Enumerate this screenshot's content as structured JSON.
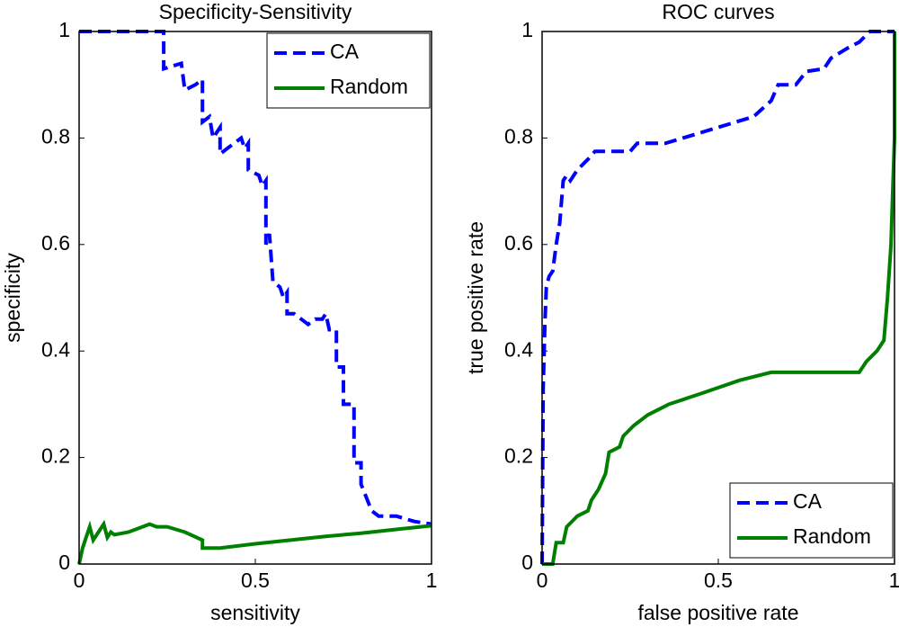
{
  "chart_data": [
    {
      "type": "line",
      "title": "Specificity-Sensitivity",
      "x_label": "sensitivity",
      "y_label": "specificity",
      "xlim": [
        0,
        1
      ],
      "ylim": [
        0,
        1
      ],
      "xticks": [
        0,
        0.5,
        1
      ],
      "yticks": [
        0,
        0.2,
        0.4,
        0.6,
        0.8,
        1
      ],
      "legend": "upper right",
      "series": [
        {
          "name": "CA",
          "color": "#0000ff",
          "dash": "dashed",
          "x": [
            0,
            0.24,
            0.24,
            0.29,
            0.3,
            0.33,
            0.35,
            0.35,
            0.37,
            0.38,
            0.4,
            0.4,
            0.42,
            0.44,
            0.46,
            0.47,
            0.48,
            0.48,
            0.51,
            0.52,
            0.53,
            0.53,
            0.54,
            0.55,
            0.57,
            0.58,
            0.59,
            0.59,
            0.61,
            0.63,
            0.65,
            0.67,
            0.69,
            0.7,
            0.71,
            0.73,
            0.73,
            0.75,
            0.75,
            0.77,
            0.78,
            0.78,
            0.8,
            0.8,
            0.83,
            0.85,
            0.9,
            0.95,
            1
          ],
          "values": [
            1,
            1,
            0.93,
            0.94,
            0.89,
            0.9,
            0.91,
            0.83,
            0.84,
            0.8,
            0.82,
            0.77,
            0.78,
            0.79,
            0.8,
            0.78,
            0.79,
            0.74,
            0.73,
            0.71,
            0.72,
            0.6,
            0.62,
            0.53,
            0.52,
            0.5,
            0.51,
            0.47,
            0.47,
            0.46,
            0.45,
            0.46,
            0.46,
            0.47,
            0.44,
            0.44,
            0.37,
            0.37,
            0.3,
            0.3,
            0.3,
            0.19,
            0.19,
            0.15,
            0.1,
            0.09,
            0.09,
            0.08,
            0.075
          ]
        },
        {
          "name": "Random",
          "color": "#008000",
          "dash": "solid",
          "x": [
            0,
            0.01,
            0.02,
            0.03,
            0.04,
            0.06,
            0.07,
            0.08,
            0.09,
            0.1,
            0.14,
            0.18,
            0.2,
            0.22,
            0.25,
            0.3,
            0.35,
            0.35,
            0.4,
            0.5,
            0.6,
            0.7,
            0.8,
            0.9,
            1
          ],
          "values": [
            0,
            0.03,
            0.05,
            0.07,
            0.045,
            0.065,
            0.075,
            0.05,
            0.06,
            0.055,
            0.06,
            0.07,
            0.075,
            0.07,
            0.07,
            0.06,
            0.045,
            0.03,
            0.03,
            0.038,
            0.045,
            0.052,
            0.058,
            0.065,
            0.072
          ]
        }
      ]
    },
    {
      "type": "line",
      "title": "ROC curves",
      "x_label": "false positive rate",
      "y_label": "true positive rate",
      "xlim": [
        0,
        1
      ],
      "ylim": [
        0,
        1
      ],
      "xticks": [
        0,
        0.5,
        1
      ],
      "yticks": [
        0,
        0.2,
        0.4,
        0.6,
        0.8,
        1
      ],
      "legend": "lower right",
      "series": [
        {
          "name": "CA",
          "color": "#0000ff",
          "dash": "dashed",
          "x": [
            0,
            0.003,
            0.008,
            0.012,
            0.02,
            0.03,
            0.04,
            0.05,
            0.06,
            0.07,
            0.08,
            0.1,
            0.13,
            0.15,
            0.2,
            0.25,
            0.27,
            0.35,
            0.45,
            0.55,
            0.6,
            0.65,
            0.67,
            0.72,
            0.75,
            0.8,
            0.82,
            0.87,
            0.9,
            0.93,
            1
          ],
          "values": [
            0,
            0.33,
            0.45,
            0.52,
            0.54,
            0.55,
            0.6,
            0.64,
            0.72,
            0.73,
            0.72,
            0.74,
            0.76,
            0.775,
            0.775,
            0.775,
            0.79,
            0.79,
            0.81,
            0.83,
            0.84,
            0.87,
            0.9,
            0.9,
            0.925,
            0.93,
            0.95,
            0.97,
            0.98,
            1,
            1
          ]
        },
        {
          "name": "Random",
          "color": "#008000",
          "dash": "solid",
          "x": [
            0,
            0.03,
            0.04,
            0.06,
            0.07,
            0.1,
            0.13,
            0.14,
            0.16,
            0.18,
            0.19,
            0.22,
            0.23,
            0.26,
            0.3,
            0.33,
            0.36,
            0.45,
            0.56,
            0.65,
            0.9,
            0.92,
            0.95,
            0.97,
            0.98,
            0.99,
            1,
            1
          ],
          "values": [
            0,
            0,
            0.04,
            0.04,
            0.07,
            0.09,
            0.1,
            0.12,
            0.14,
            0.17,
            0.21,
            0.22,
            0.24,
            0.26,
            0.28,
            0.29,
            0.3,
            0.32,
            0.345,
            0.36,
            0.36,
            0.38,
            0.4,
            0.42,
            0.5,
            0.6,
            0.8,
            1
          ]
        }
      ]
    }
  ]
}
